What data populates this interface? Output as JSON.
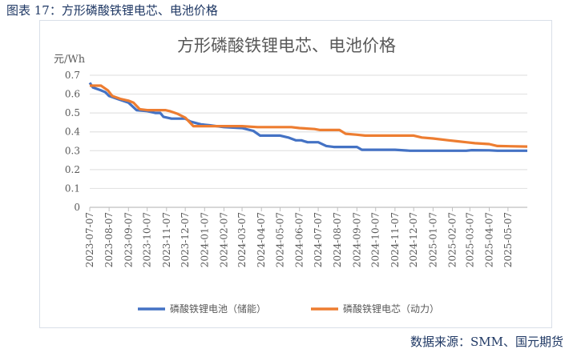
{
  "figure_title": "图表 17：方形磷酸铁锂电芯、电池价格",
  "source": "数据来源：SMM、国元期货",
  "chart_data": {
    "type": "line",
    "title": "方形磷酸铁锂电芯、电池价格",
    "ylabel": "元/Wh",
    "ylim": [
      0,
      0.7
    ],
    "yticks": [
      "0",
      "0.1",
      "0.2",
      "0.3",
      "0.4",
      "0.5",
      "0.6",
      "0.7"
    ],
    "xlim": [
      "2023-07-07",
      "2025-06-07"
    ],
    "xticks": [
      "2023-07-07",
      "2023-08-07",
      "2023-09-07",
      "2023-10-07",
      "2023-11-07",
      "2023-12-07",
      "2024-01-07",
      "2024-02-07",
      "2024-03-07",
      "2024-04-07",
      "2024-05-07",
      "2024-06-07",
      "2024-07-07",
      "2024-08-07",
      "2024-09-07",
      "2024-10-07",
      "2024-11-07",
      "2024-12-07",
      "2025-01-07",
      "2025-02-07",
      "2025-03-07",
      "2025-04-07",
      "2025-05-07"
    ],
    "grid": true,
    "legend_position": "bottom",
    "series": [
      {
        "name": "磷酸铁锂电池（储能）",
        "color": "#4472c4",
        "points": [
          [
            "2023-07-07",
            0.66
          ],
          [
            "2023-07-12",
            0.635
          ],
          [
            "2023-07-25",
            0.62
          ],
          [
            "2023-08-01",
            0.61
          ],
          [
            "2023-08-07",
            0.59
          ],
          [
            "2023-08-20",
            0.575
          ],
          [
            "2023-09-07",
            0.555
          ],
          [
            "2023-09-20",
            0.515
          ],
          [
            "2023-10-07",
            0.51
          ],
          [
            "2023-10-20",
            0.5
          ],
          [
            "2023-10-28",
            0.5
          ],
          [
            "2023-11-02",
            0.48
          ],
          [
            "2023-11-15",
            0.47
          ],
          [
            "2023-12-07",
            0.47
          ],
          [
            "2023-12-15",
            0.455
          ],
          [
            "2024-01-01",
            0.44
          ],
          [
            "2024-01-15",
            0.435
          ],
          [
            "2024-02-07",
            0.425
          ],
          [
            "2024-03-07",
            0.42
          ],
          [
            "2024-03-25",
            0.405
          ],
          [
            "2024-04-05",
            0.38
          ],
          [
            "2024-05-07",
            0.38
          ],
          [
            "2024-05-20",
            0.37
          ],
          [
            "2024-06-01",
            0.355
          ],
          [
            "2024-06-10",
            0.355
          ],
          [
            "2024-06-20",
            0.345
          ],
          [
            "2024-07-07",
            0.345
          ],
          [
            "2024-07-20",
            0.325
          ],
          [
            "2024-08-01",
            0.32
          ],
          [
            "2024-09-07",
            0.32
          ],
          [
            "2024-09-15",
            0.305
          ],
          [
            "2024-11-07",
            0.305
          ],
          [
            "2024-12-01",
            0.3
          ],
          [
            "2025-03-01",
            0.3
          ],
          [
            "2025-03-10",
            0.303
          ],
          [
            "2025-04-07",
            0.302
          ],
          [
            "2025-04-20",
            0.3
          ],
          [
            "2025-06-07",
            0.3
          ]
        ]
      },
      {
        "name": "磷酸铁锂电芯（动力）",
        "color": "#ed7d31",
        "points": [
          [
            "2023-07-07",
            0.645
          ],
          [
            "2023-07-25",
            0.645
          ],
          [
            "2023-08-05",
            0.62
          ],
          [
            "2023-08-12",
            0.59
          ],
          [
            "2023-08-25",
            0.575
          ],
          [
            "2023-09-07",
            0.565
          ],
          [
            "2023-09-15",
            0.555
          ],
          [
            "2023-09-25",
            0.52
          ],
          [
            "2023-10-07",
            0.515
          ],
          [
            "2023-11-05",
            0.515
          ],
          [
            "2023-11-12",
            0.51
          ],
          [
            "2023-11-25",
            0.495
          ],
          [
            "2023-12-07",
            0.475
          ],
          [
            "2023-12-20",
            0.43
          ],
          [
            "2024-03-07",
            0.43
          ],
          [
            "2024-04-01",
            0.425
          ],
          [
            "2024-05-25",
            0.425
          ],
          [
            "2024-06-07",
            0.42
          ],
          [
            "2024-07-01",
            0.415
          ],
          [
            "2024-07-10",
            0.41
          ],
          [
            "2024-08-10",
            0.41
          ],
          [
            "2024-08-20",
            0.39
          ],
          [
            "2024-09-07",
            0.385
          ],
          [
            "2024-09-20",
            0.38
          ],
          [
            "2024-12-07",
            0.38
          ],
          [
            "2024-12-20",
            0.37
          ],
          [
            "2025-01-07",
            0.365
          ],
          [
            "2025-02-01",
            0.355
          ],
          [
            "2025-02-15",
            0.35
          ],
          [
            "2025-03-01",
            0.345
          ],
          [
            "2025-03-15",
            0.34
          ],
          [
            "2025-04-07",
            0.335
          ],
          [
            "2025-04-20",
            0.325
          ],
          [
            "2025-06-07",
            0.322
          ]
        ]
      }
    ]
  }
}
